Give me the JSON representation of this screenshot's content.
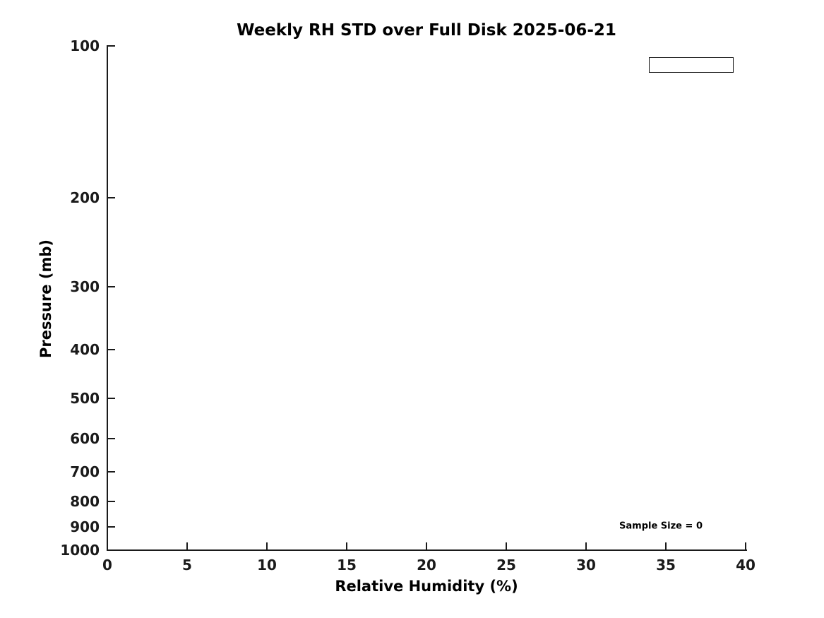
{
  "figure": {
    "background_color": "#ffffff",
    "text_color": "#000000",
    "axis_color": "#1a1a1a"
  },
  "chart_data": {
    "type": "line",
    "title": "Weekly RH STD over Full Disk 2025-06-21",
    "xlabel": "Relative Humidity (%)",
    "ylabel": "Pressure (mb)",
    "xlim": [
      0,
      40
    ],
    "xticks": [
      0,
      5,
      10,
      15,
      20,
      25,
      30,
      35,
      40
    ],
    "ylim": [
      100,
      1000
    ],
    "yscale": "log",
    "y_axis_direction": "reversed",
    "yticks": [
      100,
      200,
      300,
      400,
      500,
      600,
      700,
      800,
      900,
      1000
    ],
    "grid": false,
    "series": [],
    "legend": {
      "visible": true,
      "entries": [],
      "location": "upper-right"
    },
    "annotations": [
      {
        "text": "Sample Size = 0"
      }
    ]
  }
}
